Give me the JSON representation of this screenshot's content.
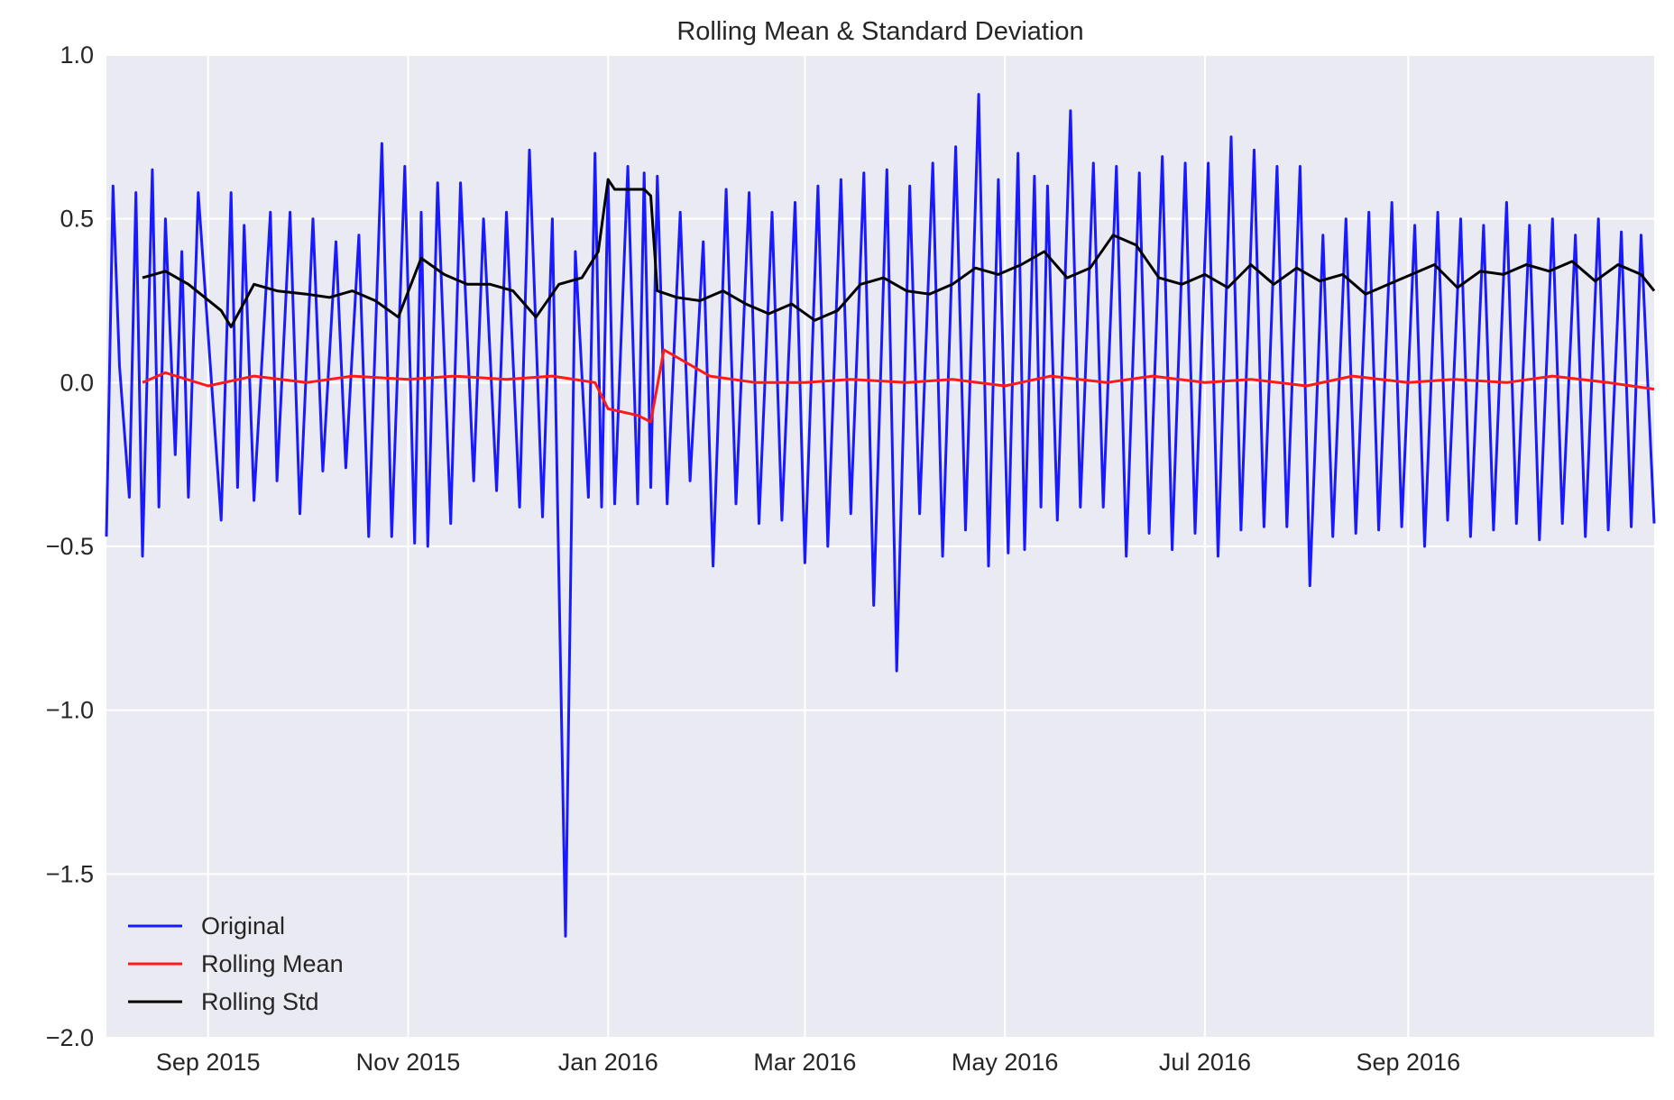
{
  "chart_data": {
    "type": "line",
    "title": "Rolling Mean & Standard Deviation",
    "xlabel": "",
    "ylabel": "",
    "x_range": [
      "2015-08-01",
      "2016-11-15"
    ],
    "ylim": [
      -2.0,
      1.0
    ],
    "grid": true,
    "legend_position": "lower-left",
    "y_ticks": [
      1.0,
      0.5,
      0.0,
      -0.5,
      -1.0,
      -1.5,
      -2.0
    ],
    "y_tick_labels": [
      "1.0",
      "0.5",
      "0.0",
      "−0.5",
      "−1.0",
      "−1.5",
      "−2.0"
    ],
    "x_ticks": [
      "2015-09-01",
      "2015-11-01",
      "2016-01-01",
      "2016-03-01",
      "2016-05-01",
      "2016-07-01",
      "2016-09-01"
    ],
    "x_tick_labels": [
      "Sep 2015",
      "Nov 2015",
      "Jan 2016",
      "Mar 2016",
      "May 2016",
      "Jul 2016",
      "Sep 2016"
    ],
    "series": [
      {
        "name": "Original",
        "color": "#1a1aff",
        "x": [
          "2015-08-01",
          "2015-08-03",
          "2015-08-05",
          "2015-08-08",
          "2015-08-10",
          "2015-08-12",
          "2015-08-15",
          "2015-08-17",
          "2015-08-19",
          "2015-08-22",
          "2015-08-24",
          "2015-08-26",
          "2015-08-29",
          "2015-09-05",
          "2015-09-08",
          "2015-09-10",
          "2015-09-12",
          "2015-09-15",
          "2015-09-20",
          "2015-09-22",
          "2015-09-26",
          "2015-09-29",
          "2015-10-03",
          "2015-10-06",
          "2015-10-10",
          "2015-10-13",
          "2015-10-17",
          "2015-10-20",
          "2015-10-24",
          "2015-10-27",
          "2015-10-31",
          "2015-11-03",
          "2015-11-05",
          "2015-11-07",
          "2015-11-10",
          "2015-11-14",
          "2015-11-17",
          "2015-11-21",
          "2015-11-24",
          "2015-11-28",
          "2015-12-01",
          "2015-12-05",
          "2015-12-08",
          "2015-12-12",
          "2015-12-15",
          "2015-12-19",
          "2015-12-22",
          "2015-12-26",
          "2015-12-28",
          "2015-12-30",
          "2016-01-01",
          "2016-01-03",
          "2016-01-07",
          "2016-01-10",
          "2016-01-12",
          "2016-01-14",
          "2016-01-16",
          "2016-01-19",
          "2016-01-23",
          "2016-01-26",
          "2016-01-30",
          "2016-02-02",
          "2016-02-06",
          "2016-02-09",
          "2016-02-13",
          "2016-02-16",
          "2016-02-20",
          "2016-02-23",
          "2016-02-27",
          "2016-03-01",
          "2016-03-05",
          "2016-03-08",
          "2016-03-12",
          "2016-03-15",
          "2016-03-19",
          "2016-03-22",
          "2016-03-26",
          "2016-03-29",
          "2016-04-02",
          "2016-04-05",
          "2016-04-09",
          "2016-04-12",
          "2016-04-16",
          "2016-04-19",
          "2016-04-23",
          "2016-04-26",
          "2016-04-29",
          "2016-05-02",
          "2016-05-05",
          "2016-05-07",
          "2016-05-10",
          "2016-05-12",
          "2016-05-14",
          "2016-05-17",
          "2016-05-21",
          "2016-05-24",
          "2016-05-28",
          "2016-05-31",
          "2016-06-04",
          "2016-06-07",
          "2016-06-11",
          "2016-06-14",
          "2016-06-18",
          "2016-06-21",
          "2016-06-25",
          "2016-06-28",
          "2016-07-02",
          "2016-07-05",
          "2016-07-09",
          "2016-07-12",
          "2016-07-16",
          "2016-07-19",
          "2016-07-23",
          "2016-07-26",
          "2016-07-30",
          "2016-08-02",
          "2016-08-06",
          "2016-08-09",
          "2016-08-13",
          "2016-08-16",
          "2016-08-20",
          "2016-08-23",
          "2016-08-27",
          "2016-08-30",
          "2016-09-03",
          "2016-09-06",
          "2016-09-10",
          "2016-09-13",
          "2016-09-17",
          "2016-09-20",
          "2016-09-24",
          "2016-09-27",
          "2016-10-01",
          "2016-10-04",
          "2016-10-08",
          "2016-10-11",
          "2016-10-15",
          "2016-10-18",
          "2016-10-22",
          "2016-10-25",
          "2016-10-29",
          "2016-11-01",
          "2016-11-05",
          "2016-11-08",
          "2016-11-11",
          "2016-11-15"
        ],
        "y": [
          -0.47,
          0.6,
          0.05,
          -0.35,
          0.58,
          -0.53,
          0.65,
          -0.38,
          0.5,
          -0.22,
          0.4,
          -0.35,
          0.58,
          -0.42,
          0.58,
          -0.32,
          0.48,
          -0.36,
          0.52,
          -0.3,
          0.52,
          -0.4,
          0.5,
          -0.27,
          0.43,
          -0.26,
          0.45,
          -0.47,
          0.73,
          -0.47,
          0.66,
          -0.49,
          0.52,
          -0.5,
          0.61,
          -0.43,
          0.61,
          -0.3,
          0.5,
          -0.33,
          0.52,
          -0.38,
          0.71,
          -0.41,
          0.5,
          -1.69,
          0.4,
          -0.35,
          0.7,
          -0.38,
          0.62,
          -0.37,
          0.66,
          -0.37,
          0.64,
          -0.32,
          0.63,
          -0.37,
          0.52,
          -0.3,
          0.43,
          -0.56,
          0.59,
          -0.37,
          0.58,
          -0.43,
          0.52,
          -0.42,
          0.55,
          -0.55,
          0.6,
          -0.5,
          0.62,
          -0.4,
          0.64,
          -0.68,
          0.65,
          -0.88,
          0.6,
          -0.4,
          0.67,
          -0.53,
          0.72,
          -0.45,
          0.88,
          -0.56,
          0.62,
          -0.52,
          0.7,
          -0.51,
          0.63,
          -0.38,
          0.6,
          -0.42,
          0.83,
          -0.38,
          0.67,
          -0.38,
          0.66,
          -0.53,
          0.64,
          -0.46,
          0.69,
          -0.51,
          0.67,
          -0.46,
          0.67,
          -0.53,
          0.75,
          -0.45,
          0.71,
          -0.44,
          0.66,
          -0.44,
          0.66,
          -0.62,
          0.45,
          -0.47,
          0.5,
          -0.46,
          0.52,
          -0.45,
          0.55,
          -0.44,
          0.48,
          -0.5,
          0.52,
          -0.42,
          0.5,
          -0.47,
          0.48,
          -0.45,
          0.55,
          -0.43,
          0.48,
          -0.48,
          0.5,
          -0.43,
          0.45,
          -0.47,
          0.5,
          -0.45,
          0.46,
          -0.44,
          0.45,
          -0.43
        ]
      },
      {
        "name": "Rolling Mean",
        "color": "#ff1a1a",
        "x": [
          "2015-08-12",
          "2015-08-19",
          "2015-09-01",
          "2015-09-15",
          "2015-10-01",
          "2015-10-15",
          "2015-11-01",
          "2015-11-15",
          "2015-12-01",
          "2015-12-15",
          "2015-12-28",
          "2016-01-01",
          "2016-01-10",
          "2016-01-14",
          "2016-01-18",
          "2016-01-25",
          "2016-02-01",
          "2016-02-15",
          "2016-03-01",
          "2016-03-15",
          "2016-04-01",
          "2016-04-15",
          "2016-05-01",
          "2016-05-15",
          "2016-06-01",
          "2016-06-15",
          "2016-07-01",
          "2016-07-15",
          "2016-08-01",
          "2016-08-15",
          "2016-09-01",
          "2016-09-15",
          "2016-10-01",
          "2016-10-15",
          "2016-11-01",
          "2016-11-15"
        ],
        "y": [
          0.0,
          0.03,
          -0.01,
          0.02,
          0.0,
          0.02,
          0.01,
          0.02,
          0.01,
          0.02,
          0.0,
          -0.08,
          -0.1,
          -0.12,
          0.1,
          0.06,
          0.02,
          0.0,
          0.0,
          0.01,
          0.0,
          0.01,
          -0.01,
          0.02,
          0.0,
          0.02,
          0.0,
          0.01,
          -0.01,
          0.02,
          0.0,
          0.01,
          0.0,
          0.02,
          0.0,
          -0.02
        ]
      },
      {
        "name": "Rolling Std",
        "color": "#000000",
        "x": [
          "2015-08-12",
          "2015-08-19",
          "2015-08-26",
          "2015-09-05",
          "2015-09-08",
          "2015-09-15",
          "2015-09-22",
          "2015-10-01",
          "2015-10-08",
          "2015-10-15",
          "2015-10-22",
          "2015-10-29",
          "2015-11-05",
          "2015-11-12",
          "2015-11-19",
          "2015-11-26",
          "2015-12-03",
          "2015-12-10",
          "2015-12-17",
          "2015-12-24",
          "2015-12-29",
          "2016-01-01",
          "2016-01-03",
          "2016-01-12",
          "2016-01-14",
          "2016-01-16",
          "2016-01-22",
          "2016-01-29",
          "2016-02-05",
          "2016-02-12",
          "2016-02-19",
          "2016-02-26",
          "2016-03-04",
          "2016-03-11",
          "2016-03-18",
          "2016-03-25",
          "2016-04-01",
          "2016-04-08",
          "2016-04-15",
          "2016-04-22",
          "2016-04-29",
          "2016-05-06",
          "2016-05-13",
          "2016-05-20",
          "2016-05-27",
          "2016-06-03",
          "2016-06-10",
          "2016-06-17",
          "2016-06-24",
          "2016-07-01",
          "2016-07-08",
          "2016-07-15",
          "2016-07-22",
          "2016-07-29",
          "2016-08-05",
          "2016-08-12",
          "2016-08-19",
          "2016-08-26",
          "2016-09-02",
          "2016-09-09",
          "2016-09-16",
          "2016-09-23",
          "2016-09-30",
          "2016-10-07",
          "2016-10-14",
          "2016-10-21",
          "2016-10-28",
          "2016-11-04",
          "2016-11-11",
          "2016-11-15"
        ],
        "y": [
          0.32,
          0.34,
          0.3,
          0.22,
          0.17,
          0.3,
          0.28,
          0.27,
          0.26,
          0.28,
          0.25,
          0.2,
          0.38,
          0.33,
          0.3,
          0.3,
          0.28,
          0.2,
          0.3,
          0.32,
          0.4,
          0.62,
          0.59,
          0.59,
          0.57,
          0.28,
          0.26,
          0.25,
          0.28,
          0.24,
          0.21,
          0.24,
          0.19,
          0.22,
          0.3,
          0.32,
          0.28,
          0.27,
          0.3,
          0.35,
          0.33,
          0.36,
          0.4,
          0.32,
          0.35,
          0.45,
          0.42,
          0.32,
          0.3,
          0.33,
          0.29,
          0.36,
          0.3,
          0.35,
          0.31,
          0.33,
          0.27,
          0.3,
          0.33,
          0.36,
          0.29,
          0.34,
          0.33,
          0.36,
          0.34,
          0.37,
          0.31,
          0.36,
          0.33,
          0.28
        ]
      }
    ]
  }
}
